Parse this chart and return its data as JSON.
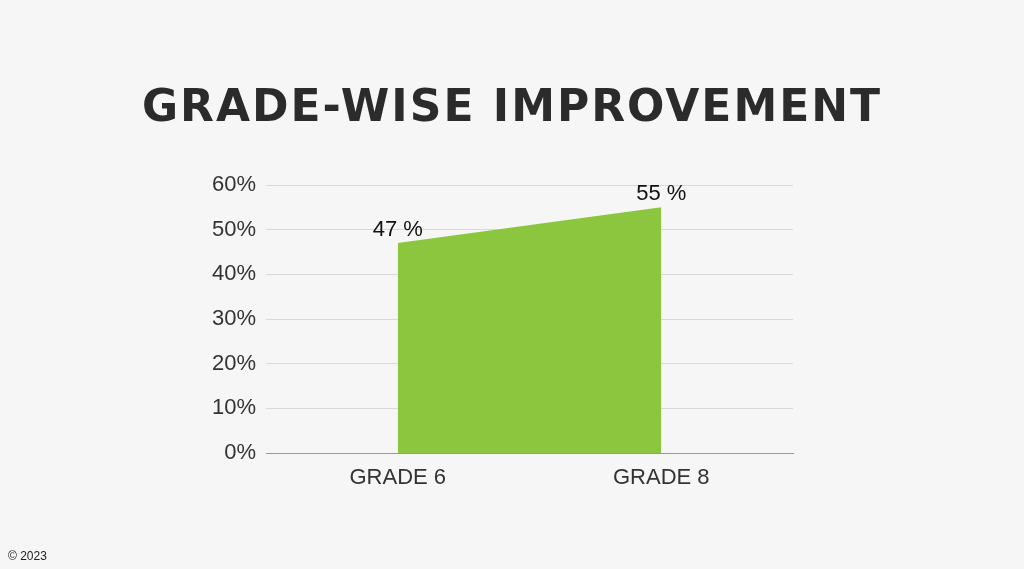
{
  "chart_data": {
    "type": "area",
    "title": "GRADE-WISE IMPROVEMENT",
    "categories": [
      "GRADE 6",
      "GRADE 8"
    ],
    "values": [
      47,
      55
    ],
    "color": "#8cc63f",
    "value_labels": [
      "47 %",
      "55 %"
    ],
    "ylim": [
      0,
      60
    ],
    "yticks": [
      {
        "value": 0,
        "label": "0%"
      },
      {
        "value": 10,
        "label": "10%"
      },
      {
        "value": 20,
        "label": "20%"
      },
      {
        "value": 30,
        "label": "30%"
      },
      {
        "value": 40,
        "label": "40%"
      },
      {
        "value": 50,
        "label": "50%"
      },
      {
        "value": 60,
        "label": "60%"
      }
    ],
    "grid": "y",
    "annotations": [
      "© 2023"
    ]
  }
}
